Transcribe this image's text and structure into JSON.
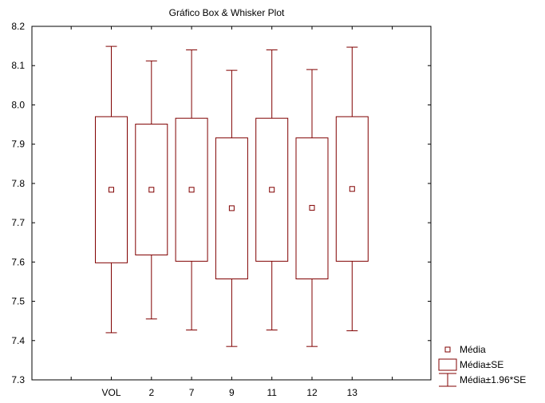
{
  "chart_data": {
    "type": "boxplot",
    "title": "Gráfico Box & Whisker Plot",
    "xlabel": "",
    "ylabel": "",
    "categories": [
      "VOL",
      "2",
      "7",
      "9",
      "11",
      "12",
      "13"
    ],
    "ylim": [
      7.3,
      8.2
    ],
    "yticks": [
      "7.3",
      "7.4",
      "7.5",
      "7.6",
      "7.7",
      "7.8",
      "7.9",
      "8.0",
      "8.1",
      "8.2"
    ],
    "boxes": [
      {
        "category": "VOL",
        "mean": 7.784,
        "box_low": 7.598,
        "box_high": 7.97,
        "whisker_low": 7.42,
        "whisker_high": 8.149
      },
      {
        "category": "2",
        "mean": 7.784,
        "box_low": 7.618,
        "box_high": 7.951,
        "whisker_low": 7.455,
        "whisker_high": 8.112
      },
      {
        "category": "7",
        "mean": 7.784,
        "box_low": 7.602,
        "box_high": 7.966,
        "whisker_low": 7.427,
        "whisker_high": 8.14
      },
      {
        "category": "9",
        "mean": 7.737,
        "box_low": 7.557,
        "box_high": 7.916,
        "whisker_low": 7.385,
        "whisker_high": 8.088
      },
      {
        "category": "11",
        "mean": 7.784,
        "box_low": 7.602,
        "box_high": 7.966,
        "whisker_low": 7.427,
        "whisker_high": 8.14
      },
      {
        "category": "12",
        "mean": 7.738,
        "box_low": 7.557,
        "box_high": 7.916,
        "whisker_low": 7.385,
        "whisker_high": 8.09
      },
      {
        "category": "13",
        "mean": 7.786,
        "box_low": 7.602,
        "box_high": 7.97,
        "whisker_low": 7.425,
        "whisker_high": 8.147
      }
    ],
    "legend": {
      "position": "bottom-right",
      "items": [
        {
          "label": "Média",
          "symbol": "square-marker"
        },
        {
          "label": "Média±SE",
          "symbol": "box"
        },
        {
          "label": "Média±1.96*SE",
          "symbol": "whisker"
        }
      ]
    },
    "grid": false,
    "colors": {
      "series": "#800000",
      "axis": "#000000",
      "background": "#ffffff"
    }
  }
}
